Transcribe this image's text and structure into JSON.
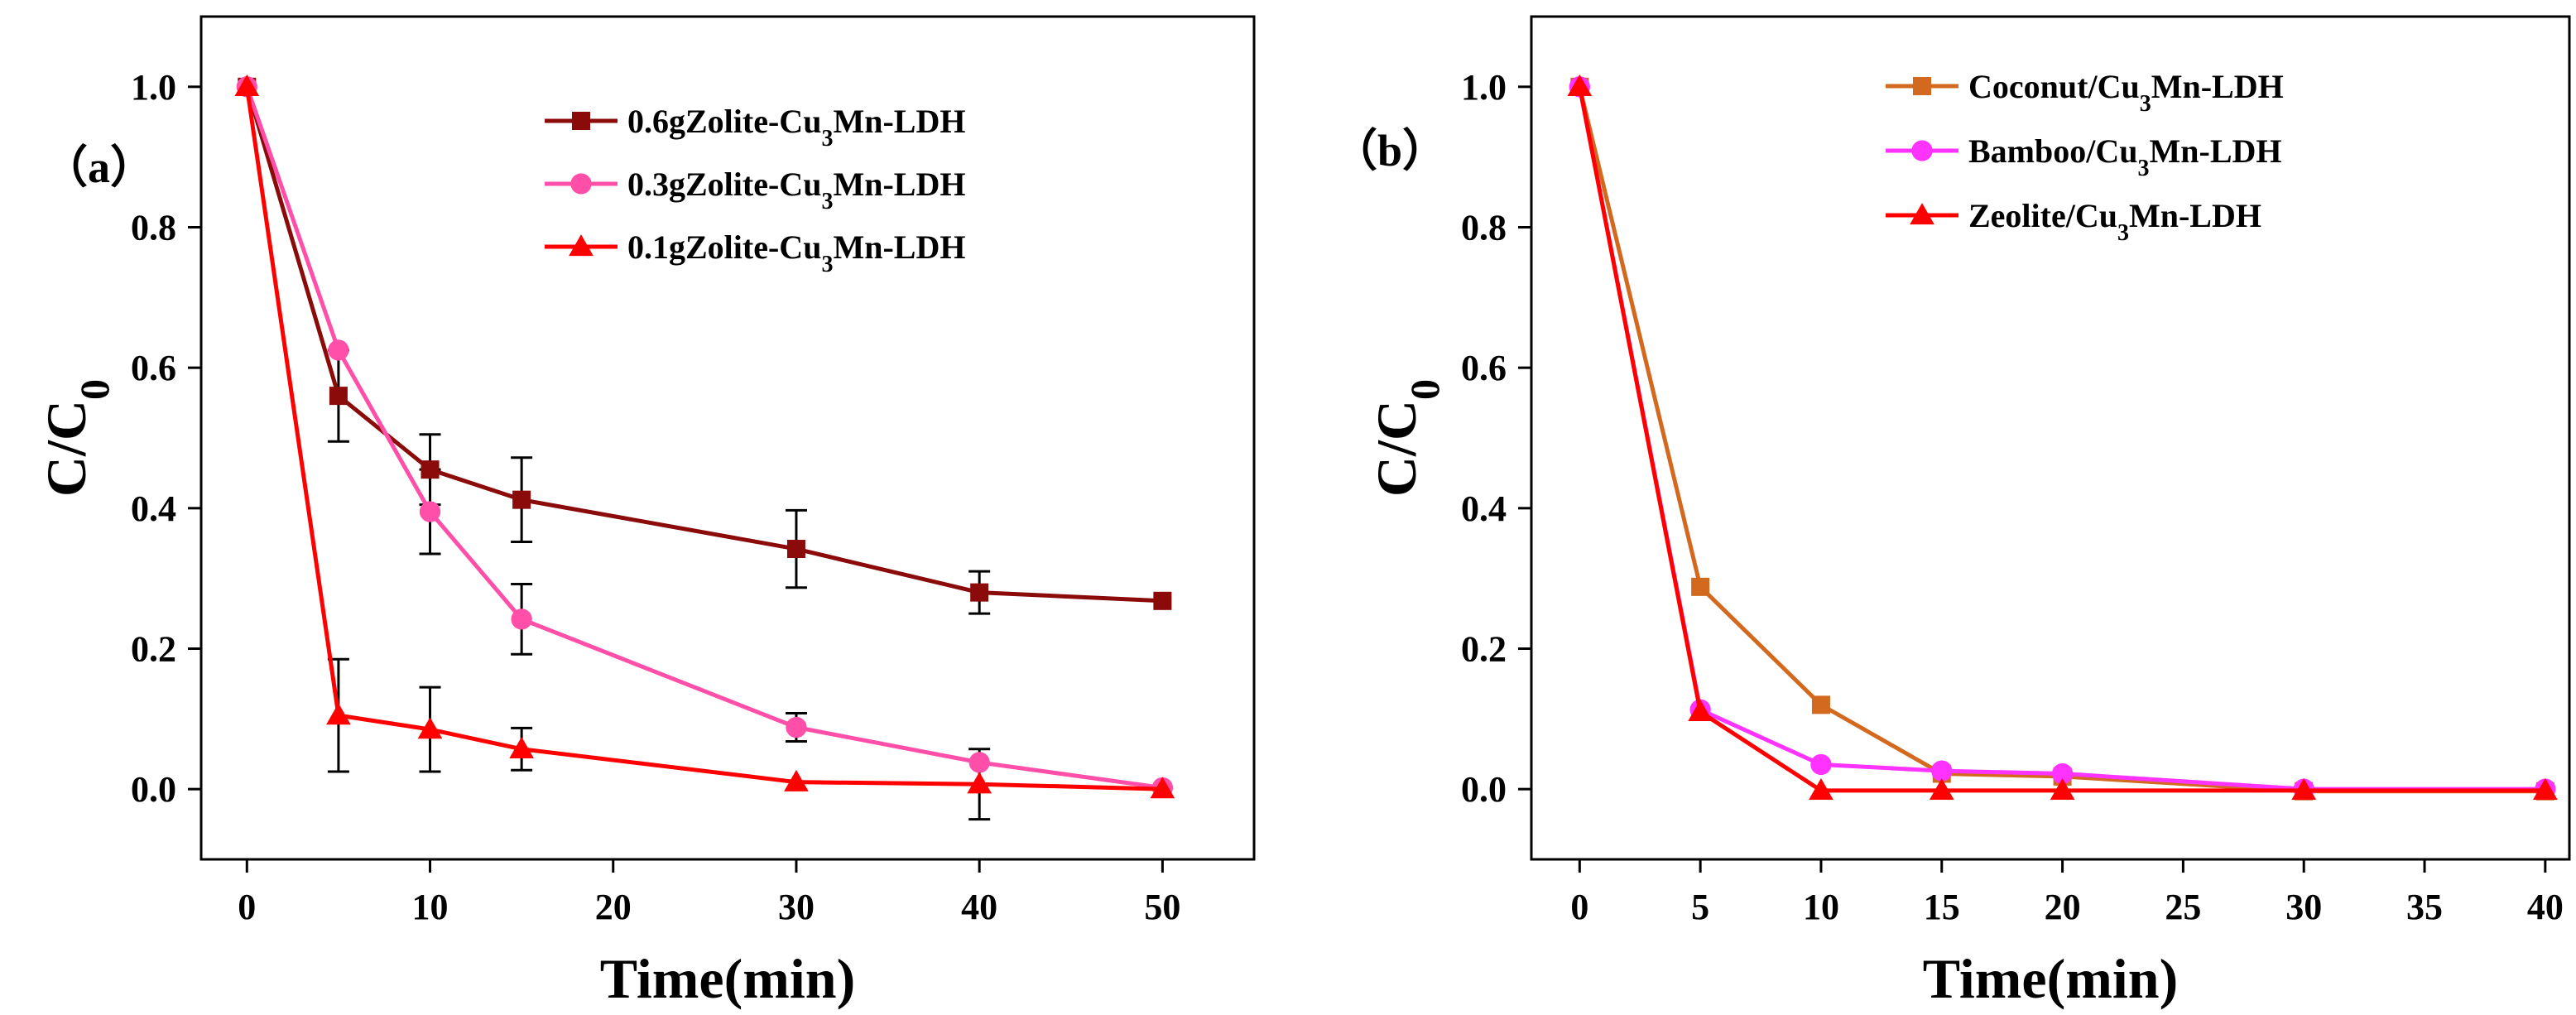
{
  "chart_data": [
    {
      "type": "line",
      "panel_label": "（a）",
      "xlabel": "Time(min)",
      "ylabel": {
        "base": "C/C",
        "sub": "0"
      },
      "xlim": [
        -2.5,
        55
      ],
      "ylim": [
        -0.1,
        1.1
      ],
      "xticks": [
        0,
        10,
        20,
        30,
        40,
        50
      ],
      "yticks": [
        0.0,
        0.2,
        0.4,
        0.6,
        0.8,
        1.0
      ],
      "ytick_labels": [
        "0.0",
        "0.2",
        "0.4",
        "0.6",
        "0.8",
        "1.0"
      ],
      "legend_position": "top-right",
      "series": [
        {
          "name": {
            "prefix": "0.6gZolite-Cu",
            "sub": "3",
            "suffix": "Mn-LDH"
          },
          "color": "#8B0A0A",
          "marker": "square",
          "x": [
            0,
            5,
            10,
            15,
            30,
            40,
            50
          ],
          "y": [
            1.0,
            0.56,
            0.455,
            0.412,
            0.342,
            0.28,
            0.268
          ],
          "err": [
            0,
            0.065,
            0.05,
            0.06,
            0.055,
            0.03,
            0
          ]
        },
        {
          "name": {
            "prefix": "0.3gZolite-Cu",
            "sub": "3",
            "suffix": "Mn-LDH"
          },
          "color": "#FF4FA8",
          "marker": "circle",
          "x": [
            0,
            5,
            10,
            15,
            30,
            40,
            50
          ],
          "y": [
            1.0,
            0.625,
            0.395,
            0.242,
            0.088,
            0.038,
            0.002
          ],
          "err": [
            0,
            0,
            0.06,
            0.05,
            0.02,
            0,
            0
          ]
        },
        {
          "name": {
            "prefix": "0.1gZolite-Cu",
            "sub": "3",
            "suffix": "Mn-LDH"
          },
          "color": "#FF0000",
          "marker": "triangle",
          "x": [
            0,
            5,
            10,
            15,
            30,
            40,
            50
          ],
          "y": [
            1.0,
            0.105,
            0.085,
            0.057,
            0.01,
            0.007,
            0.0
          ],
          "err": [
            0,
            0.08,
            0.06,
            0.03,
            0,
            0.05,
            0
          ]
        }
      ]
    },
    {
      "type": "line",
      "panel_label": "（b）",
      "xlabel": "Time(min)",
      "ylabel": {
        "base": "C/C",
        "sub": "0"
      },
      "xlim": [
        -2,
        41
      ],
      "ylim": [
        -0.1,
        1.1
      ],
      "xticks": [
        0,
        5,
        10,
        15,
        20,
        25,
        30,
        35,
        40
      ],
      "yticks": [
        0.0,
        0.2,
        0.4,
        0.6,
        0.8,
        1.0
      ],
      "ytick_labels": [
        "0.0",
        "0.2",
        "0.4",
        "0.6",
        "0.8",
        "1.0"
      ],
      "legend_position": "top-right",
      "series": [
        {
          "name": {
            "prefix": "Coconut/Cu",
            "sub": "3",
            "suffix": "Mn-LDH"
          },
          "color": "#D2691E",
          "marker": "square",
          "x": [
            0,
            5,
            10,
            15,
            20,
            30,
            40
          ],
          "y": [
            1.0,
            0.288,
            0.12,
            0.022,
            0.018,
            -0.003,
            -0.003
          ]
        },
        {
          "name": {
            "prefix": "Bamboo/Cu",
            "sub": "3",
            "suffix": "Mn-LDH"
          },
          "color": "#FF33FF",
          "marker": "circle",
          "x": [
            0,
            5,
            10,
            15,
            20,
            30,
            40
          ],
          "y": [
            1.0,
            0.113,
            0.035,
            0.026,
            0.022,
            0.0,
            0.0
          ]
        },
        {
          "name": {
            "prefix": "Zeolite/Cu",
            "sub": "3",
            "suffix": "Mn-LDH"
          },
          "color": "#FF0000",
          "marker": "triangle",
          "x": [
            0,
            5,
            10,
            15,
            20,
            30,
            40
          ],
          "y": [
            1.0,
            0.11,
            -0.002,
            -0.002,
            -0.002,
            -0.002,
            -0.002
          ]
        }
      ]
    }
  ]
}
